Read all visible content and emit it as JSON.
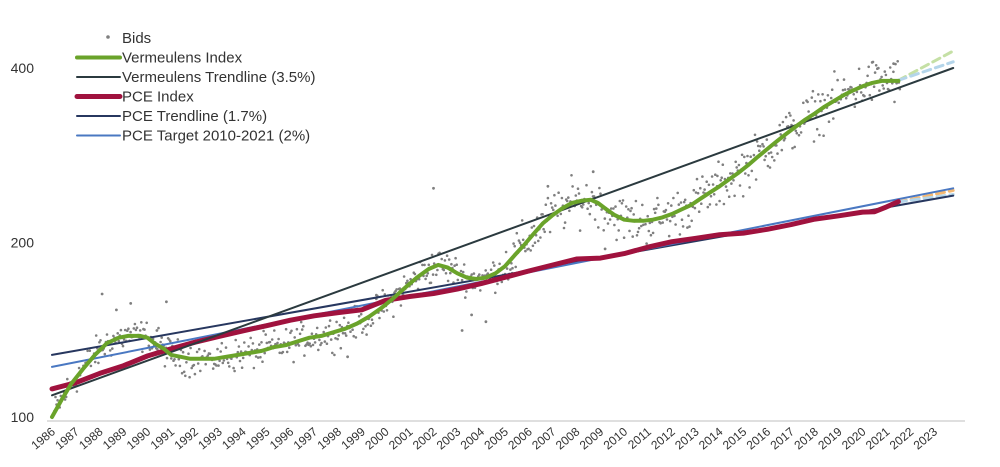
{
  "chart_data": {
    "type": "line",
    "title": "",
    "xlabel": "",
    "ylabel": "",
    "xlim": [
      1986,
      2024
    ],
    "ylim": [
      100,
      460
    ],
    "y_scale": "log",
    "grid": false,
    "legend_placement": "top-left",
    "y_ticks": [
      {
        "value": 100,
        "label": "100"
      },
      {
        "value": 200,
        "label": "200"
      },
      {
        "value": 400,
        "label": "400"
      }
    ],
    "x_ticks": [
      "1986",
      "1987",
      "1988",
      "1989",
      "1990",
      "1991",
      "1992",
      "1993",
      "1994",
      "1995",
      "1996",
      "1997",
      "1998",
      "1999",
      "2000",
      "2001",
      "2002",
      "2003",
      "2004",
      "2005",
      "2006",
      "2007",
      "2008",
      "2009",
      "2010",
      "2011",
      "2012",
      "2013",
      "2014",
      "2015",
      "2016",
      "2017",
      "2018",
      "2019",
      "2020",
      "2021",
      "2022",
      "2023"
    ],
    "legend": [
      {
        "key": "bids",
        "label": "Bids",
        "kind": "dot",
        "color": "#7f7f7f"
      },
      {
        "key": "vermeulens",
        "label": "Vermeulens Index",
        "kind": "line",
        "color": "#6aa32a",
        "width": 4
      },
      {
        "key": "verm_trend",
        "label": "Vermeulens Trendline (3.5%)",
        "kind": "line",
        "color": "#2b3a3f",
        "width": 2
      },
      {
        "key": "pce",
        "label": "PCE Index",
        "kind": "line",
        "color": "#a0123e",
        "width": 5
      },
      {
        "key": "pce_trend",
        "label": "PCE Trendline (1.7%)",
        "kind": "line",
        "color": "#27375f",
        "width": 2
      },
      {
        "key": "pce_target",
        "label": "PCE Target 2010-2021 (2%)",
        "kind": "line",
        "color": "#4a78c2",
        "width": 2
      }
    ],
    "series": [
      {
        "key": "vermeulens",
        "name": "Vermeulens Index",
        "color": "#6aa32a",
        "x": [
          1986.0,
          1986.4,
          1986.8,
          1987.3,
          1987.8,
          1988.3,
          1988.8,
          1989.2,
          1989.7,
          1990.0,
          1990.3,
          1990.7,
          1991.0,
          1991.4,
          1991.8,
          1992.3,
          1992.8,
          1993.3,
          1993.8,
          1994.3,
          1994.8,
          1995.3,
          1995.8,
          1996.3,
          1996.8,
          1997.3,
          1997.8,
          1998.3,
          1998.8,
          1999.3,
          1999.8,
          2000.3,
          2000.8,
          2001.3,
          2001.8,
          2002.2,
          2002.6,
          2003.0,
          2003.4,
          2003.8,
          2004.2,
          2004.6,
          2005.0,
          2005.4,
          2005.8,
          2006.2,
          2006.6,
          2007.0,
          2007.4,
          2007.8,
          2008.2,
          2008.6,
          2008.9,
          2009.2,
          2009.6,
          2010.0,
          2010.4,
          2010.8,
          2011.2,
          2011.6,
          2012.0,
          2012.4,
          2012.8,
          2013.2,
          2013.6,
          2014.0,
          2014.4,
          2014.8,
          2015.2,
          2015.6,
          2016.0,
          2016.4,
          2016.8,
          2017.2,
          2017.6,
          2018.0,
          2018.4,
          2018.8,
          2019.2,
          2019.6,
          2020.0,
          2020.4,
          2020.8,
          2021.2,
          2021.5
        ],
        "values": [
          100,
          107,
          114,
          121,
          128,
          134,
          137,
          138,
          138,
          137,
          134,
          131,
          128,
          127,
          126,
          126,
          126,
          127,
          128,
          129,
          130,
          132,
          133,
          135,
          137,
          138,
          140,
          142,
          145,
          149,
          154,
          160,
          167,
          174,
          180,
          183,
          181,
          177,
          174,
          173,
          174,
          177,
          182,
          190,
          198,
          207,
          216,
          223,
          229,
          234,
          236,
          237,
          234,
          229,
          223,
          219,
          218,
          218,
          219,
          221,
          224,
          228,
          232,
          238,
          244,
          250,
          257,
          264,
          272,
          281,
          290,
          299,
          308,
          317,
          326,
          334,
          343,
          351,
          359,
          366,
          372,
          377,
          380,
          380,
          380
        ]
      },
      {
        "key": "pce",
        "name": "PCE Index",
        "color": "#a0123e",
        "x": [
          1986.0,
          1987,
          1988,
          1989,
          1990,
          1991,
          1992,
          1993,
          1994,
          1995,
          1996,
          1997,
          1998,
          1999,
          2000,
          2001,
          2002,
          2003,
          2004,
          2005,
          2006,
          2007,
          2008,
          2009,
          2010,
          2011,
          2012,
          2013,
          2014,
          2015,
          2016,
          2017,
          2018,
          2019,
          2020,
          2020.5,
          2021.0,
          2021.5
        ],
        "values": [
          111.8,
          114.6,
          118.9,
          122.6,
          127.4,
          131.1,
          134.6,
          137.7,
          140.8,
          143.7,
          146.9,
          149.5,
          151.4,
          153.1,
          159.0,
          161.4,
          163.3,
          166.3,
          169.9,
          174.2,
          178.6,
          182.9,
          187.3,
          188.0,
          191.4,
          196.4,
          200.6,
          203.4,
          206.3,
          207.6,
          210.8,
          214.7,
          219.5,
          222.4,
          225.7,
          226.0,
          230.4,
          235.3
        ]
      },
      {
        "key": "verm_trend",
        "name": "Vermeulens Trendline (3.5%)",
        "color": "#2b3a3f",
        "x": [
          1986,
          2023.8
        ],
        "values": [
          109,
          400
        ]
      },
      {
        "key": "pce_trend",
        "name": "PCE Trendline (1.7%)",
        "color": "#27375f",
        "x": [
          1986,
          2023.8
        ],
        "values": [
          128,
          241
        ]
      },
      {
        "key": "pce_target",
        "name": "PCE Target 2010-2021 (2%)",
        "color": "#4a78c2",
        "x": [
          1986,
          2023.8
        ],
        "values": [
          122,
          248
        ]
      },
      {
        "key": "verm_forecast",
        "color": "#c5e0a5",
        "dashed": true,
        "x": [
          2021.5,
          2023.8
        ],
        "values": [
          381,
          428
        ]
      },
      {
        "key": "verm_forecast_low",
        "color": "#b4d5ea",
        "dashed": true,
        "x": [
          2021.5,
          2023.8
        ],
        "values": [
          381,
          410
        ]
      },
      {
        "key": "pce_forecast",
        "color": "#f4b872",
        "dashed": true,
        "x": [
          2021.5,
          2023.8
        ],
        "values": [
          235,
          246
        ]
      },
      {
        "key": "pce_forecast_low",
        "color": "#b4d5ea",
        "dashed": true,
        "x": [
          2021.5,
          2023.8
        ],
        "values": [
          235,
          242
        ]
      }
    ],
    "bids": {
      "color": "#7f7f7f",
      "outliers": [
        [
          1988.1,
          163
        ],
        [
          1988.7,
          153
        ],
        [
          1989.3,
          157
        ],
        [
          1990.4,
          141
        ],
        [
          1990.8,
          158
        ],
        [
          1998.4,
          127
        ],
        [
          1999.6,
          160
        ],
        [
          2002.0,
          248
        ],
        [
          2003.2,
          141
        ],
        [
          2003.6,
          150
        ],
        [
          2004.2,
          146
        ],
        [
          2005.3,
          177
        ],
        [
          2006.8,
          250
        ],
        [
          2008.7,
          265
        ],
        [
          2009.2,
          195
        ],
        [
          2010.2,
          193
        ],
        [
          2013.9,
          250
        ],
        [
          2015.2,
          273
        ],
        [
          2020.4,
          409
        ],
        [
          2021.3,
          407
        ]
      ]
    }
  }
}
